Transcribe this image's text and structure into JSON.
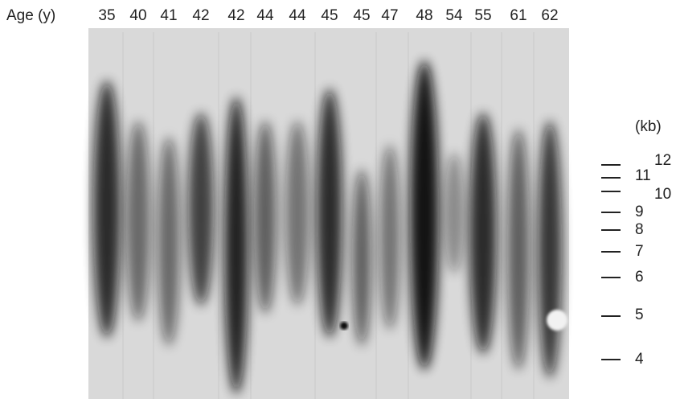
{
  "figure": {
    "row_label": "Age (y)",
    "lanes": [
      "35",
      "40",
      "41",
      "42",
      "42",
      "44",
      "44",
      "45",
      "45",
      "47",
      "48",
      "54",
      "55",
      "61",
      "62"
    ],
    "size_unit": "(kb)",
    "size_markers": [
      "12",
      "11",
      "10",
      "9",
      "8",
      "7",
      "6",
      "5",
      "4"
    ]
  }
}
